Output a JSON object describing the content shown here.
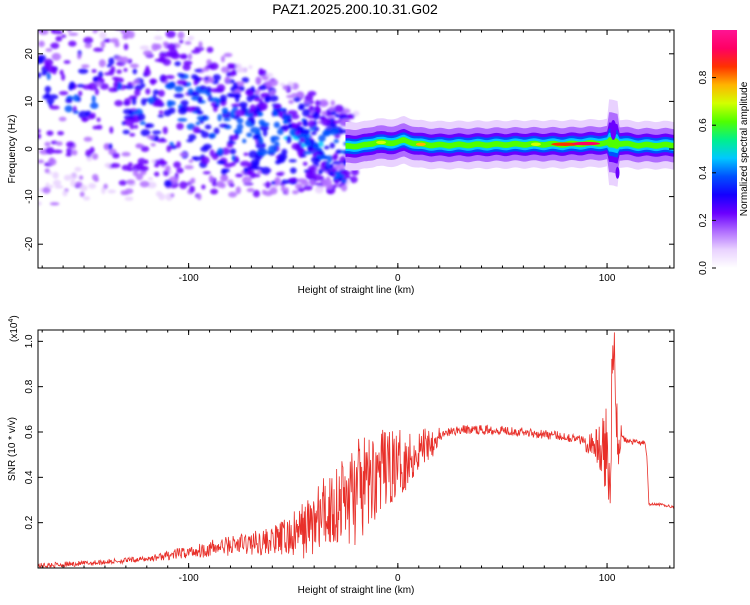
{
  "title": "PAZ1.2025.200.10.31.G02",
  "colors": {
    "snr_line": "#e8302a",
    "axis": "#000000",
    "colormap": [
      "#ffffff",
      "#e9d2ff",
      "#b06dff",
      "#6a00ff",
      "#1400ff",
      "#0050ff",
      "#00c8ff",
      "#00f08c",
      "#50ff00",
      "#d2ff00",
      "#ffb400",
      "#ff3200",
      "#ff0064",
      "#ff1493"
    ]
  },
  "chart_data": [
    {
      "type": "heatmap",
      "name": "spectrogram",
      "title": "PAZ1.2025.200.10.31.G02",
      "xlabel": "Height of straight line (km)",
      "ylabel": "Frequency (Hz)",
      "xlim": [
        -172,
        132
      ],
      "ylim": [
        -25,
        25
      ],
      "xticks": [
        -100,
        0,
        100
      ],
      "yticks": [
        -20,
        -10,
        0,
        10,
        20
      ],
      "colorbar": {
        "label": "Normalized spectral amplitude",
        "range": [
          0,
          1
        ],
        "ticks": [
          "0.0",
          "0.2",
          "0.4",
          "0.6",
          "0.8"
        ]
      },
      "ridge": [
        [
          -25,
          0.5
        ],
        [
          -15,
          0.8
        ],
        [
          -10,
          1.5
        ],
        [
          -5,
          1.2
        ],
        [
          0,
          1.5
        ],
        [
          3,
          1.8
        ],
        [
          10,
          1.0
        ],
        [
          20,
          0.8
        ],
        [
          40,
          0.9
        ],
        [
          60,
          1.0
        ],
        [
          80,
          1.0
        ],
        [
          95,
          1.2
        ],
        [
          103,
          1.3
        ],
        [
          115,
          0.8
        ],
        [
          132,
          0.8
        ]
      ]
    },
    {
      "type": "line",
      "name": "snr",
      "title": "",
      "xlabel": "Height of straight line (km)",
      "ylabel": "SNR (10 * v/v)",
      "y_multiplier": "(x10",
      "y_multiplier_exp": "4",
      "y_multiplier_close": ")",
      "xlim": [
        -172,
        132
      ],
      "ylim": [
        0,
        1.05
      ],
      "xticks": [
        -100,
        0,
        100
      ],
      "yticks": [
        "0.2",
        "0.4",
        "0.6",
        "0.8",
        "1.0"
      ],
      "ytick_values": [
        0.2,
        0.4,
        0.6,
        0.8,
        1.0
      ],
      "x": [
        -172,
        -150,
        -120,
        -100,
        -80,
        -60,
        -50,
        -40,
        -30,
        -20,
        -15,
        -10,
        -5,
        0,
        5,
        10,
        15,
        20,
        25,
        30,
        40,
        50,
        60,
        70,
        80,
        90,
        95,
        100,
        103,
        105,
        110,
        118,
        119,
        120,
        125,
        132
      ],
      "y": [
        0.01,
        0.02,
        0.04,
        0.07,
        0.1,
        0.12,
        0.14,
        0.2,
        0.28,
        0.33,
        0.36,
        0.42,
        0.44,
        0.46,
        0.48,
        0.52,
        0.56,
        0.58,
        0.6,
        0.61,
        0.61,
        0.61,
        0.6,
        0.59,
        0.58,
        0.56,
        0.54,
        0.48,
        0.6,
        0.58,
        0.56,
        0.55,
        0.5,
        0.28,
        0.28,
        0.27
      ]
    }
  ]
}
